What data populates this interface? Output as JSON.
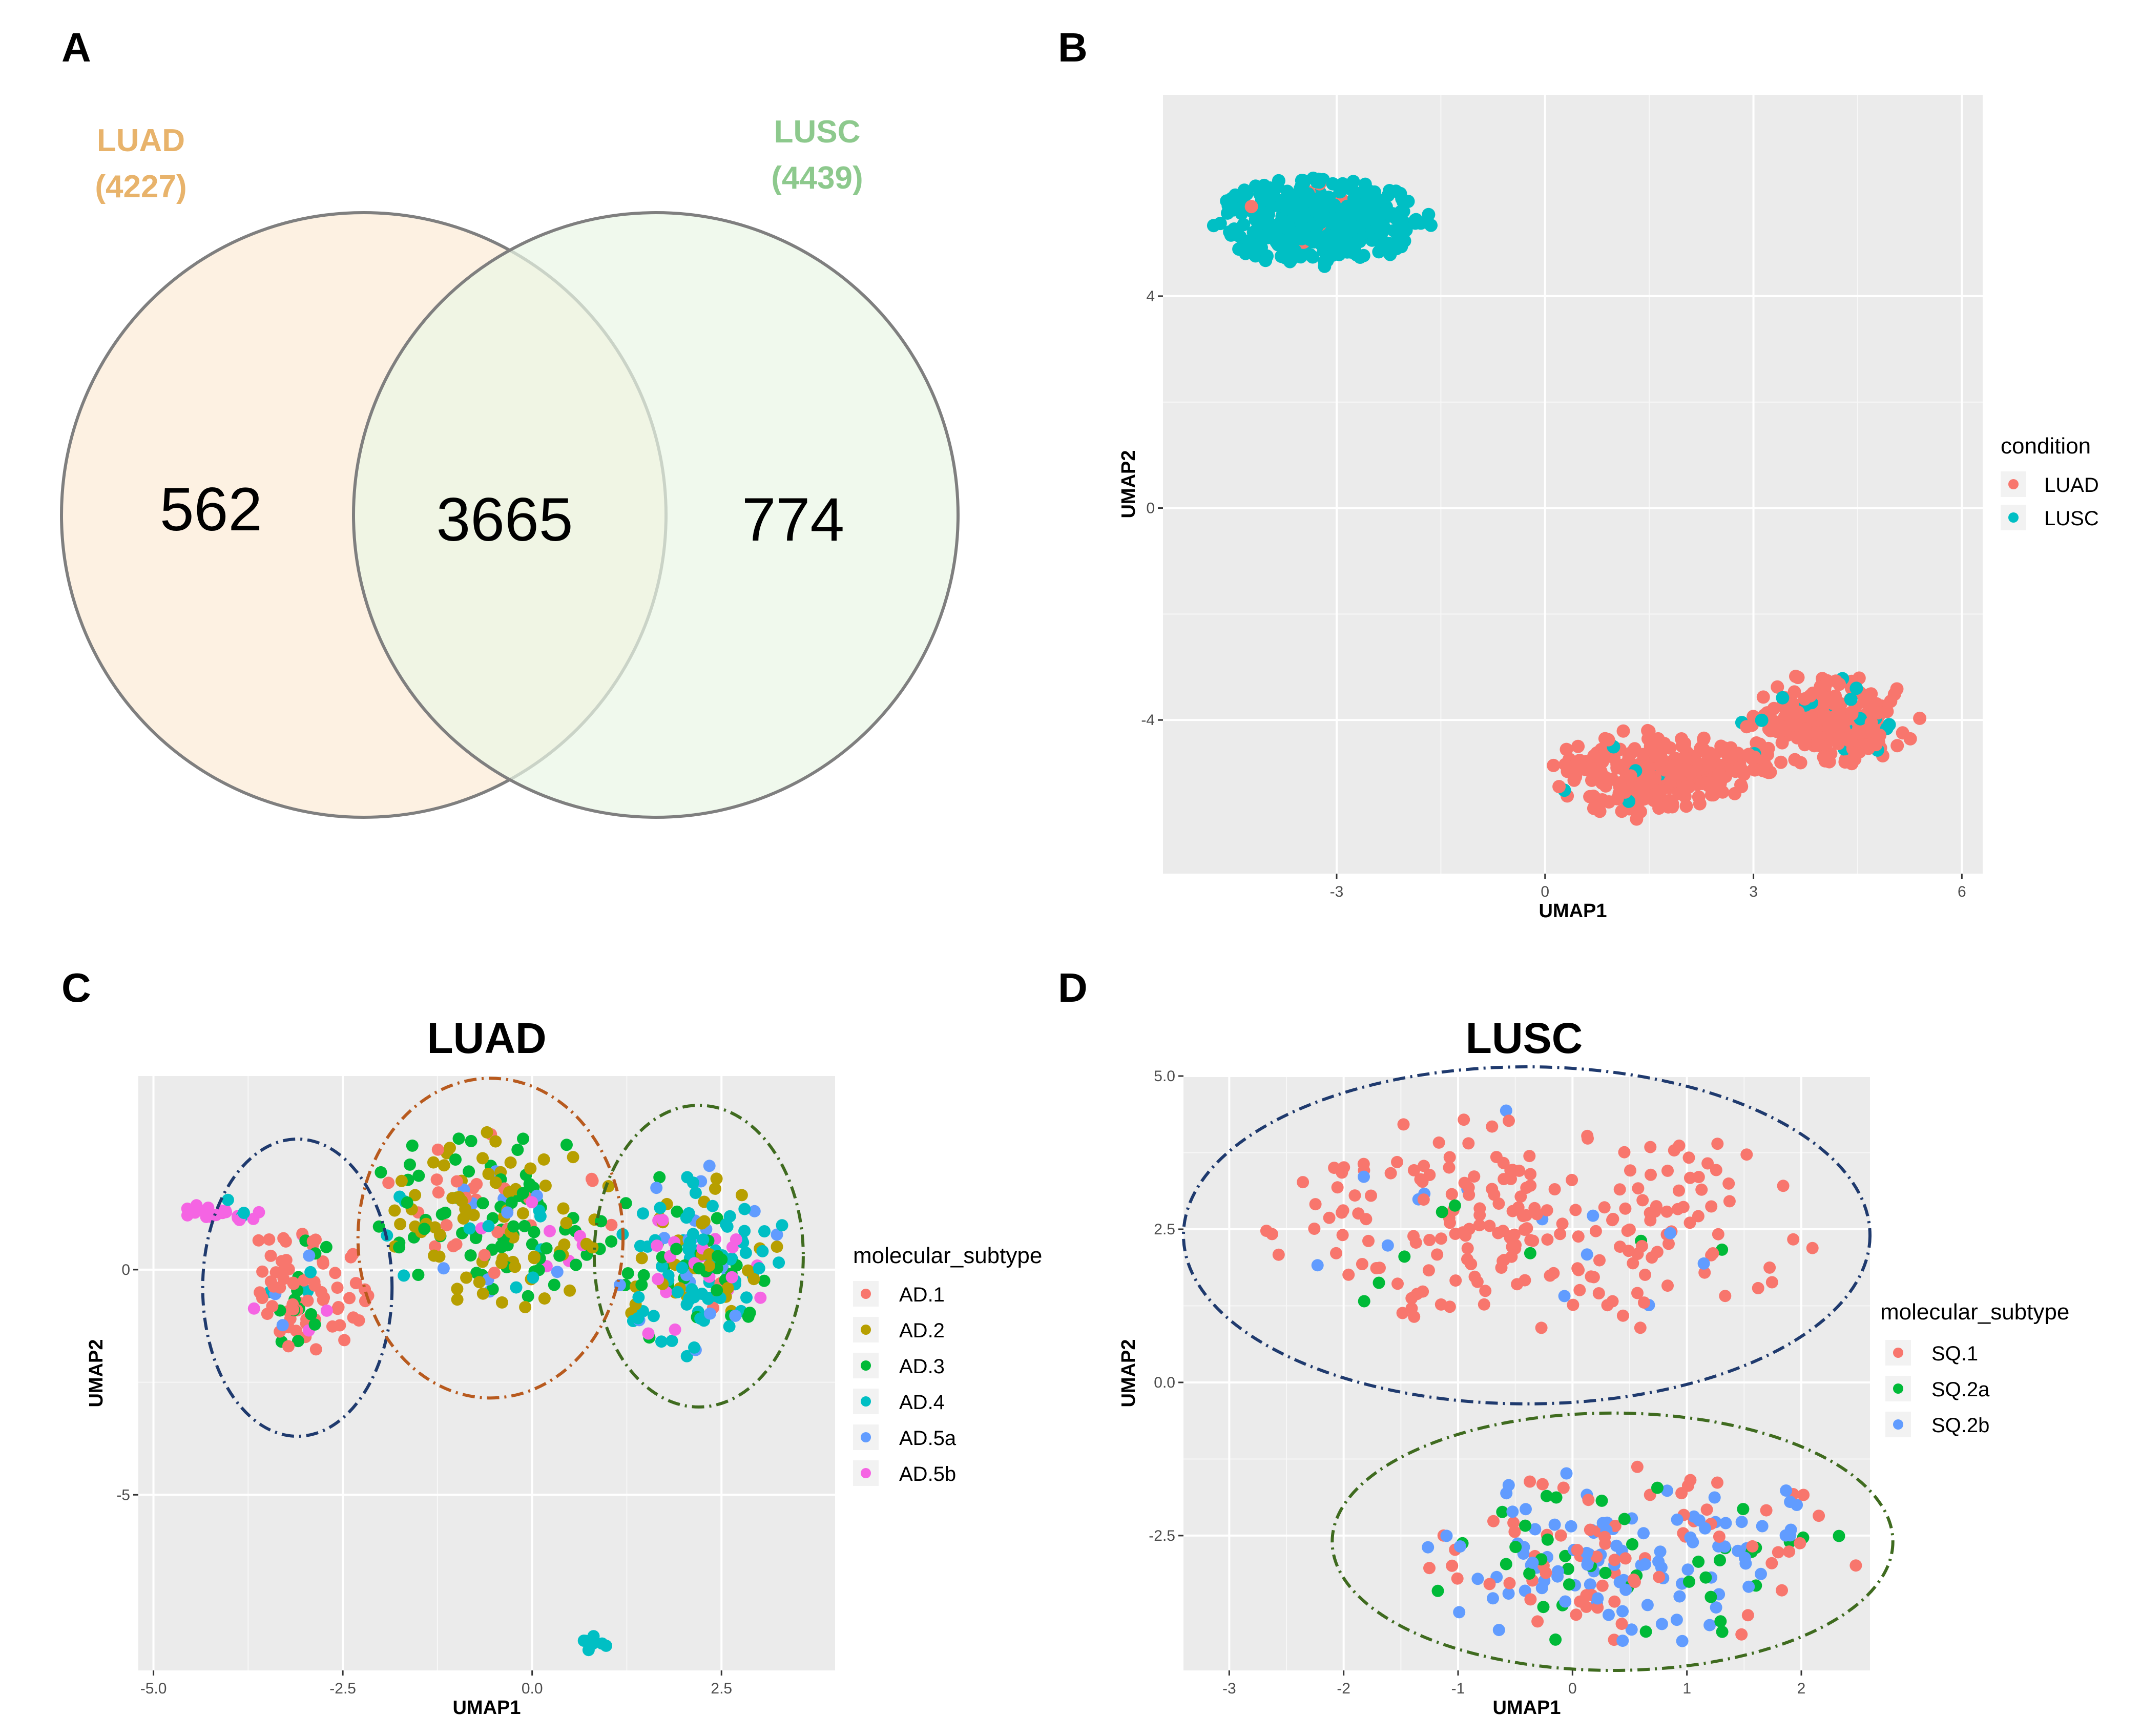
{
  "panels": {
    "A": {
      "label": "A",
      "chart_data": {
        "type": "venn",
        "sets": [
          {
            "name": "LUAD",
            "count_label": "(4227)",
            "size": 4227,
            "color": "#e8b36b",
            "fill": "#fdf0df"
          },
          {
            "name": "LUSC",
            "count_label": "(4439)",
            "size": 4439,
            "color": "#8dc98d",
            "fill": "#edf7ea"
          }
        ],
        "regions": {
          "luad_only": "562",
          "intersection": "3665",
          "lusc_only": "774"
        }
      }
    },
    "B": {
      "label": "B",
      "chart_data": {
        "type": "scatter",
        "xlabel": "UMAP1",
        "ylabel": "UMAP2",
        "xlim": [
          -5.5,
          6.3
        ],
        "ylim": [
          -6.9,
          7.8
        ],
        "xticks": [
          -3,
          0,
          3,
          6
        ],
        "yticks": [
          -4,
          0,
          4
        ],
        "legend_title": "condition",
        "legend": [
          {
            "name": "LUAD",
            "color": "#f8766d"
          },
          {
            "name": "LUSC",
            "color": "#00bfc4"
          }
        ],
        "clusters": [
          {
            "series": "LUSC",
            "cx": -3.2,
            "cy": 5.4,
            "rx": 1.6,
            "ry": 0.85,
            "n": 420,
            "contam": "LUAD",
            "contam_frac": 0.02
          },
          {
            "series": "LUAD",
            "cx": 1.4,
            "cy": -5.0,
            "rx": 1.3,
            "ry": 0.9,
            "n": 230,
            "contam": "LUSC",
            "contam_frac": 0.06
          },
          {
            "series": "LUAD",
            "cx": 4.1,
            "cy": -4.0,
            "rx": 1.3,
            "ry": 0.9,
            "n": 230,
            "contam": "LUSC",
            "contam_frac": 0.09
          },
          {
            "series": "LUAD",
            "cx": 2.6,
            "cy": -4.8,
            "rx": 0.8,
            "ry": 0.6,
            "n": 70,
            "contam": "LUSC",
            "contam_frac": 0.08
          }
        ]
      }
    },
    "C": {
      "label": "C",
      "chart_data": {
        "type": "scatter",
        "title": "LUAD",
        "xlabel": "UMAP1",
        "ylabel": "UMAP2",
        "xlim": [
          -5.2,
          4.0
        ],
        "ylim": [
          -8.9,
          4.3
        ],
        "xticks": [
          -5.0,
          -2.5,
          0.0,
          2.5
        ],
        "xtick_labels": [
          "-5.0",
          "-2.5",
          "0.0",
          "2.5"
        ],
        "yticks": [
          -5,
          0
        ],
        "legend_title": "molecular_subtype",
        "legend": [
          {
            "name": "AD.1",
            "color": "#f8766d"
          },
          {
            "name": "AD.2",
            "color": "#b79f00"
          },
          {
            "name": "AD.3",
            "color": "#00ba38"
          },
          {
            "name": "AD.4",
            "color": "#00bfc4"
          },
          {
            "name": "AD.5a",
            "color": "#619cff"
          },
          {
            "name": "AD.5b",
            "color": "#f564e3"
          }
        ],
        "clusters": [
          {
            "cx": -3.0,
            "cy": -0.4,
            "rx": 0.9,
            "ry": 1.5,
            "n": 90,
            "mix": [
              0.75,
              0.02,
              0.13,
              0.03,
              0.02,
              0.05
            ]
          },
          {
            "cx": -4.1,
            "cy": 1.3,
            "rx": 0.55,
            "ry": 0.3,
            "n": 22,
            "mix": [
              0.0,
              0.0,
              0.0,
              0.05,
              0.0,
              0.95
            ]
          },
          {
            "cx": -0.5,
            "cy": 1.2,
            "rx": 1.7,
            "ry": 2.1,
            "n": 200,
            "mix": [
              0.1,
              0.38,
              0.38,
              0.06,
              0.05,
              0.03
            ]
          },
          {
            "cx": 2.2,
            "cy": 0.2,
            "rx": 1.2,
            "ry": 2.2,
            "n": 190,
            "mix": [
              0.03,
              0.17,
              0.2,
              0.33,
              0.15,
              0.12
            ]
          },
          {
            "cx": 0.85,
            "cy": -8.3,
            "rx": 0.22,
            "ry": 0.2,
            "n": 8,
            "mix": [
              0.0,
              0.0,
              0.0,
              0.85,
              0.0,
              0.15
            ]
          }
        ],
        "annotation_ellipses": [
          {
            "cx": -3.1,
            "cy": -0.4,
            "rx": 1.25,
            "ry": 3.3,
            "color": "#1f3a6e"
          },
          {
            "cx": -0.55,
            "cy": 0.7,
            "rx": 1.75,
            "ry": 3.55,
            "color": "#b85a1e"
          },
          {
            "cx": 2.2,
            "cy": 0.3,
            "rx": 1.38,
            "ry": 3.35,
            "color": "#3f6b1f"
          }
        ]
      }
    },
    "D": {
      "label": "D",
      "chart_data": {
        "type": "scatter",
        "title": "LUSC",
        "xlabel": "UMAP1",
        "ylabel": "UMAP2",
        "xlim": [
          -3.4,
          2.6
        ],
        "ylim": [
          -4.7,
          5.0
        ],
        "xticks": [
          -3,
          -2,
          -1,
          0,
          1,
          2
        ],
        "yticks": [
          -2.5,
          0.0,
          2.5,
          5.0
        ],
        "ytick_labels": [
          "-2.5",
          "0.0",
          "2.5",
          "5.0"
        ],
        "legend_title": "molecular_subtype",
        "legend": [
          {
            "name": "SQ.1",
            "color": "#f8766d"
          },
          {
            "name": "SQ.2a",
            "color": "#00ba38"
          },
          {
            "name": "SQ.2b",
            "color": "#619cff"
          }
        ],
        "clusters": [
          {
            "cx": -0.4,
            "cy": 2.6,
            "rx": 2.6,
            "ry": 1.9,
            "n": 230,
            "mix": [
              0.9,
              0.03,
              0.07
            ]
          },
          {
            "cx": 0.5,
            "cy": -2.8,
            "rx": 2.0,
            "ry": 1.55,
            "n": 220,
            "mix": [
              0.3,
              0.18,
              0.52
            ]
          }
        ],
        "annotation_ellipses": [
          {
            "cx": -0.4,
            "cy": 2.4,
            "rx": 3.0,
            "ry": 2.75,
            "color": "#1f3a6e"
          },
          {
            "cx": 0.35,
            "cy": -2.6,
            "rx": 2.45,
            "ry": 2.1,
            "color": "#3f6b1f"
          }
        ]
      }
    }
  }
}
